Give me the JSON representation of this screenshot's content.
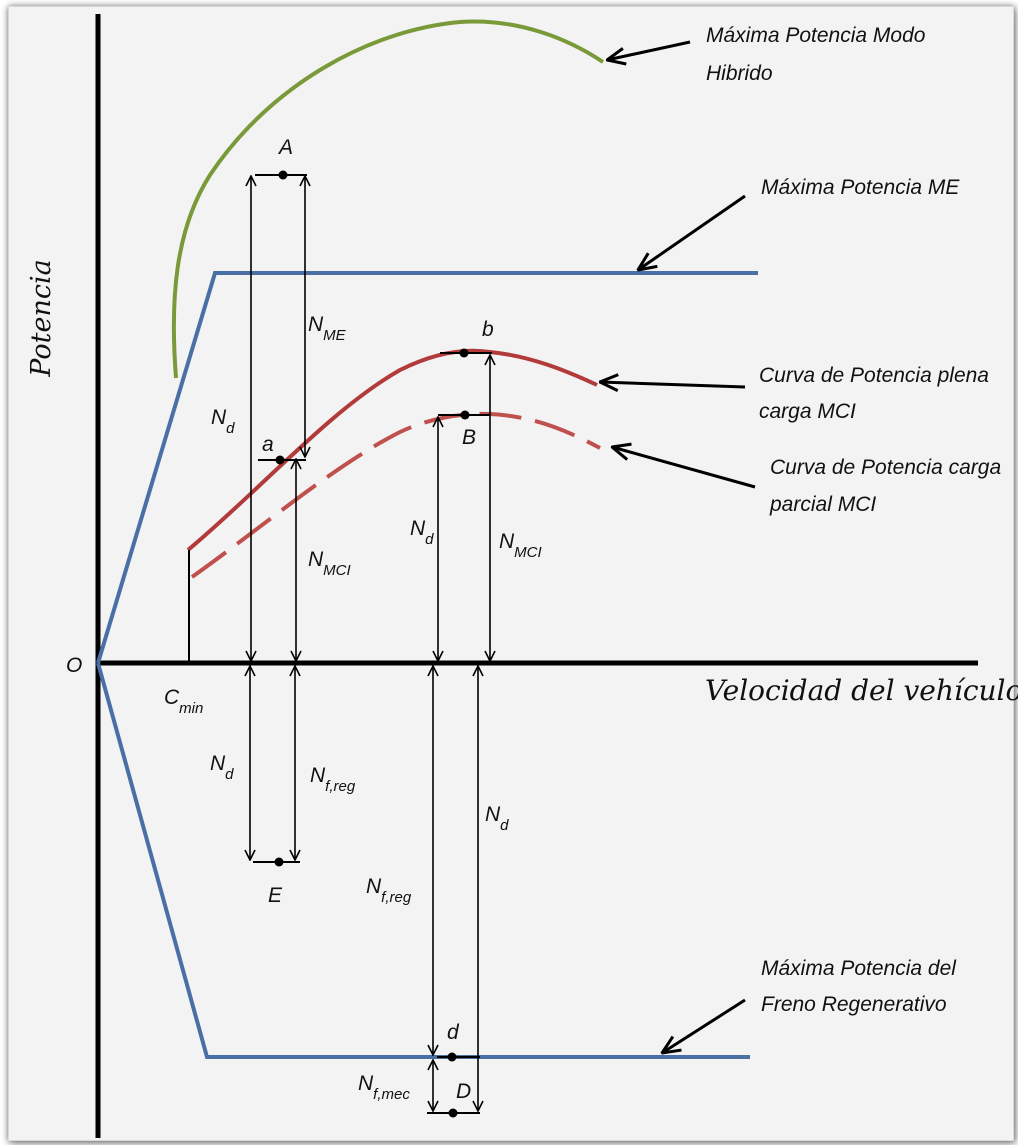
{
  "diagram": {
    "y_axis_label": "Potencia",
    "x_axis_label": "Velocidad del vehículo",
    "origin_label": "O",
    "cmin": {
      "main": "C",
      "sub": "min"
    },
    "callouts": {
      "hybrid": [
        "Máxima Potencia Modo",
        "Hibrido"
      ],
      "me": [
        "Máxima Potencia ME"
      ],
      "full_load": [
        "Curva de Potencia plena",
        "carga MCI"
      ],
      "partial_load": [
        "Curva de Potencia carga",
        "parcial MCI"
      ],
      "regen": [
        "Máxima Potencia del",
        "Freno Regenerativo"
      ]
    },
    "points": {
      "A": "A",
      "a": "a",
      "b": "b",
      "B": "B",
      "E": "E",
      "d": "d",
      "D": "D"
    },
    "quantities": {
      "nd": {
        "main": "N",
        "sub": "d"
      },
      "nme": {
        "main": "N",
        "sub": "ME"
      },
      "nmci": {
        "main": "N",
        "sub": "MCI"
      },
      "nfreg": {
        "main": "N",
        "sub": "f,reg"
      },
      "nfmec": {
        "main": "N",
        "sub": "f,mec"
      }
    },
    "colors": {
      "hybrid_curve": "#7a9a3a",
      "me_line": "#4a6fa5",
      "mci_full": "#b33a3a",
      "mci_partial": "#c0504d",
      "axes": "#000000"
    }
  }
}
